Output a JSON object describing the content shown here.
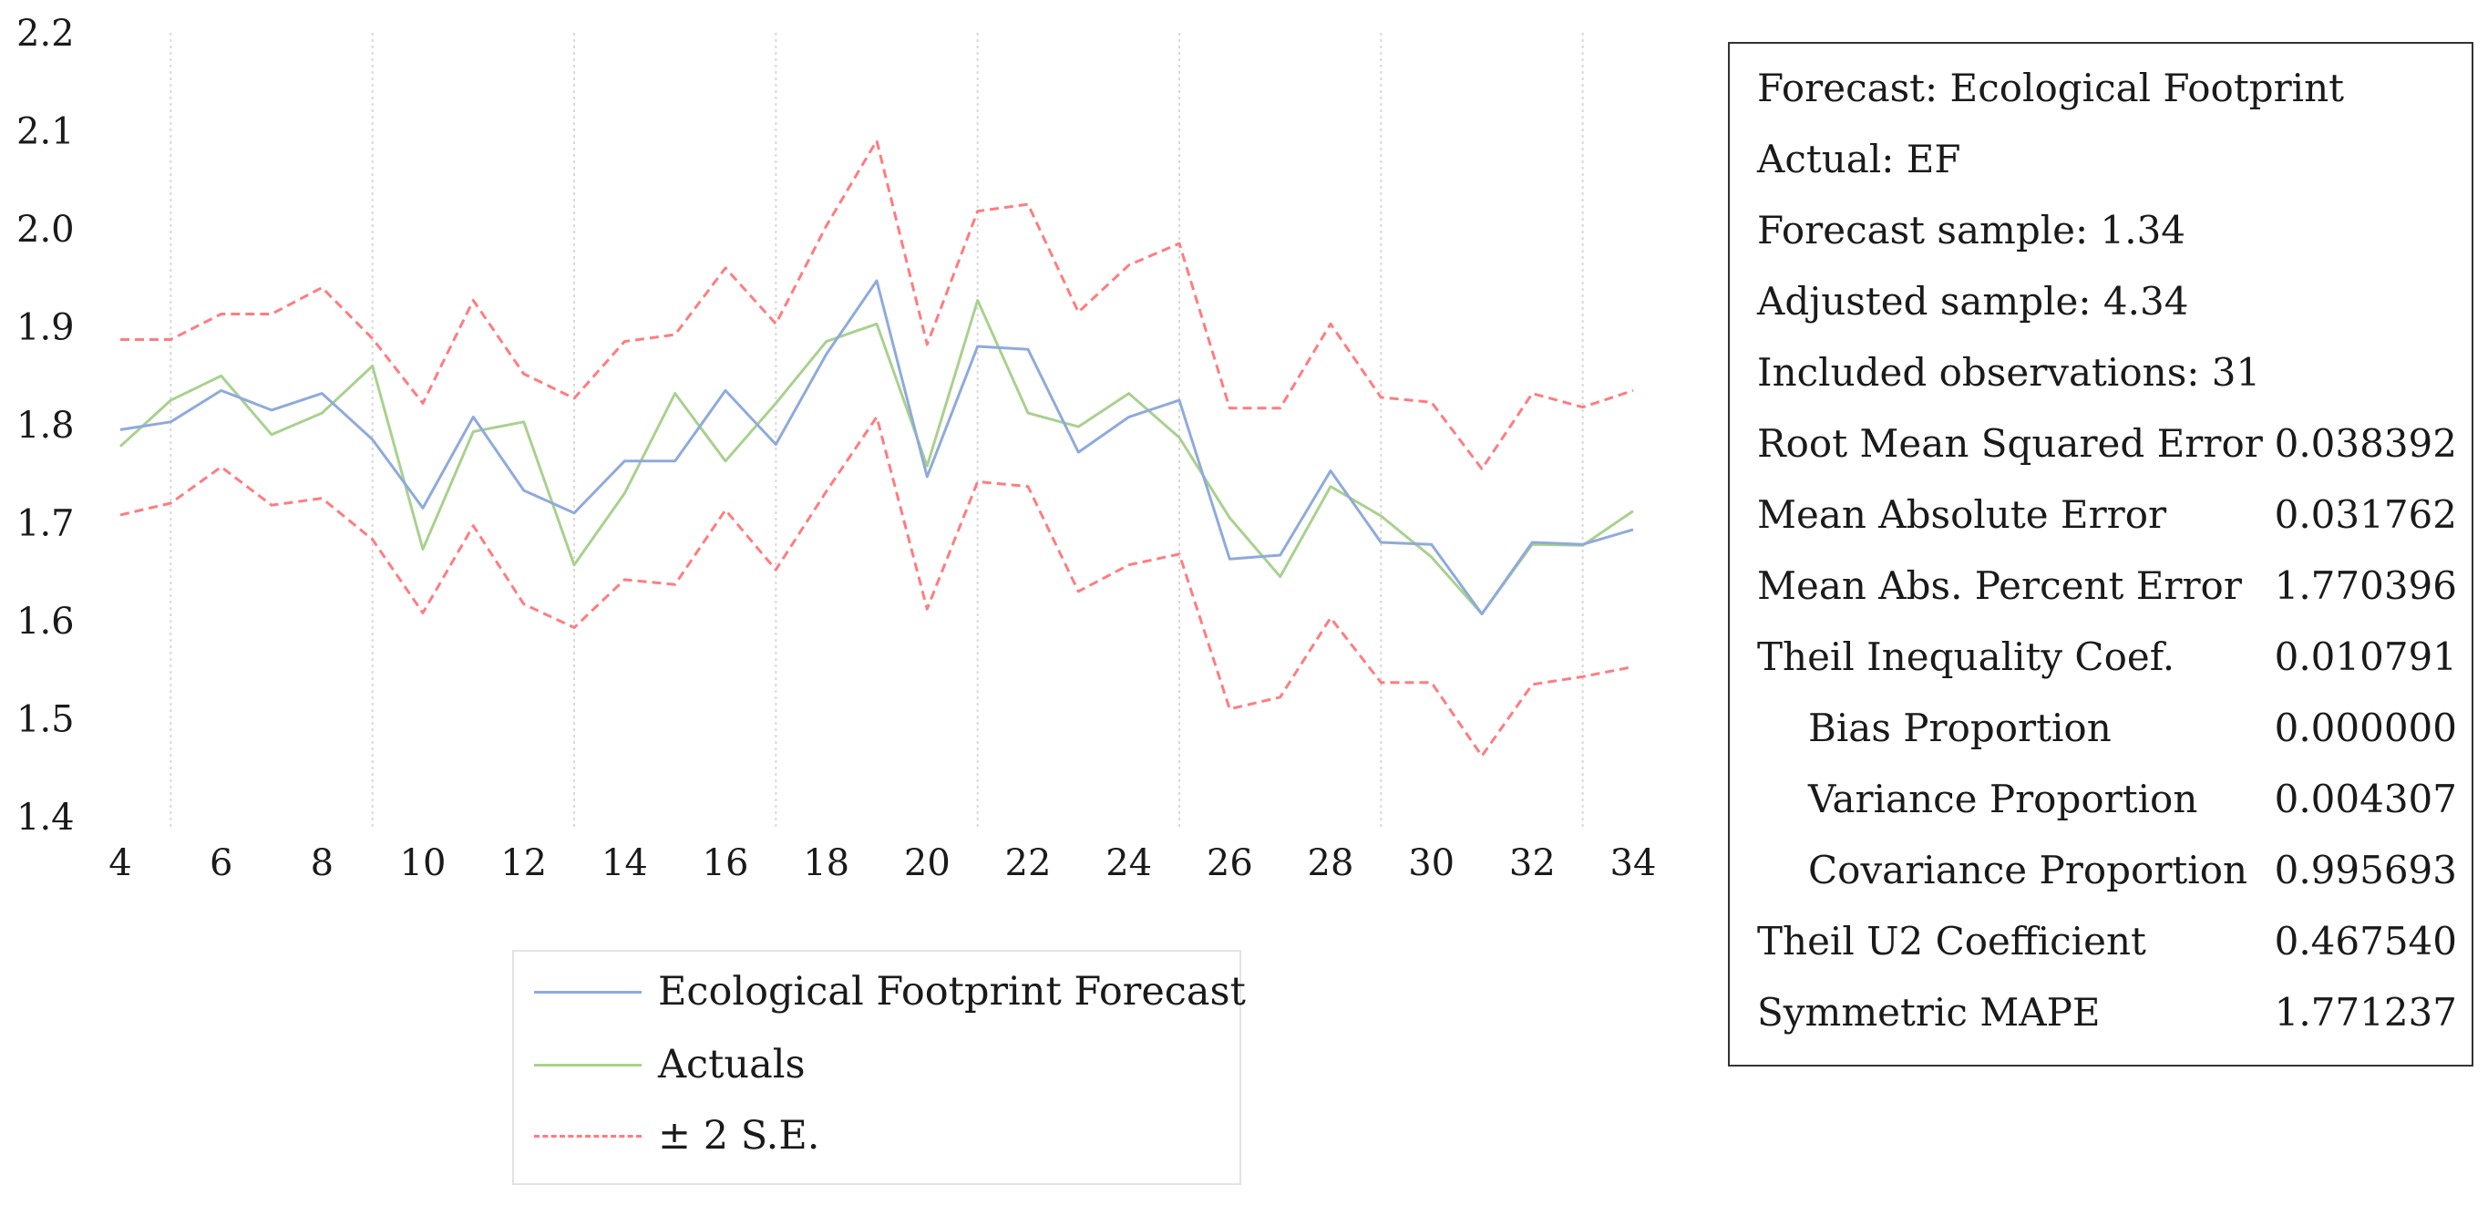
{
  "chart_data": {
    "type": "line",
    "x": [
      4,
      5,
      6,
      7,
      8,
      9,
      10,
      11,
      12,
      13,
      14,
      15,
      16,
      17,
      18,
      19,
      20,
      21,
      22,
      23,
      24,
      25,
      26,
      27,
      28,
      29,
      30,
      31,
      32,
      33,
      34
    ],
    "x_ticks": [
      "4",
      "6",
      "8",
      "10",
      "12",
      "14",
      "16",
      "18",
      "20",
      "22",
      "24",
      "26",
      "28",
      "30",
      "32",
      "34"
    ],
    "y_ticks": [
      "1.4",
      "1.5",
      "1.6",
      "1.7",
      "1.8",
      "1.9",
      "2.0",
      "2.1",
      "2.2"
    ],
    "ylim": [
      1.4,
      2.2
    ],
    "xlim": [
      4,
      34
    ],
    "series": [
      {
        "name": "Ecological Footprint Forecast",
        "color": "#8faadc",
        "values": [
          1.795,
          1.803,
          1.835,
          1.815,
          1.832,
          1.785,
          1.715,
          1.808,
          1.733,
          1.71,
          1.763,
          1.763,
          1.835,
          1.78,
          1.872,
          1.947,
          1.747,
          1.88,
          1.877,
          1.772,
          1.808,
          1.825,
          1.663,
          1.667,
          1.753,
          1.68,
          1.678,
          1.607,
          1.68,
          1.678,
          1.693
        ]
      },
      {
        "name": "Actuals",
        "color": "#a9d18e",
        "values": [
          1.778,
          1.825,
          1.85,
          1.79,
          1.812,
          1.86,
          1.673,
          1.793,
          1.803,
          1.657,
          1.73,
          1.832,
          1.763,
          1.822,
          1.885,
          1.903,
          1.758,
          1.927,
          1.812,
          1.798,
          1.832,
          1.787,
          1.705,
          1.645,
          1.737,
          1.707,
          1.665,
          1.607,
          1.678,
          1.677,
          1.712
        ]
      },
      {
        "name": "+2 S.E.",
        "color": "#ff7c80",
        "dashed": true,
        "values": [
          1.887,
          1.887,
          1.913,
          1.913,
          1.94,
          1.888,
          1.822,
          1.927,
          1.852,
          1.827,
          1.885,
          1.892,
          1.96,
          1.903,
          2.003,
          2.09,
          1.882,
          2.018,
          2.025,
          1.915,
          1.963,
          1.985,
          1.817,
          1.817,
          1.903,
          1.828,
          1.823,
          1.755,
          1.832,
          1.818,
          1.835
        ]
      },
      {
        "name": "-2 S.E.",
        "color": "#ff7c80",
        "dashed": true,
        "values": [
          1.708,
          1.72,
          1.757,
          1.718,
          1.725,
          1.683,
          1.608,
          1.697,
          1.617,
          1.593,
          1.642,
          1.637,
          1.713,
          1.652,
          1.732,
          1.808,
          1.612,
          1.742,
          1.737,
          1.63,
          1.657,
          1.668,
          1.51,
          1.522,
          1.603,
          1.537,
          1.537,
          1.462,
          1.535,
          1.543,
          1.553
        ]
      }
    ],
    "legend": [
      {
        "label": "Ecological Footprint Forecast",
        "color": "#8faadc",
        "dashed": false
      },
      {
        "label": "Actuals",
        "color": "#a9d18e",
        "dashed": false
      },
      {
        "label": "± 2 S.E.",
        "color": "#ff7c80",
        "dashed": true
      }
    ],
    "title": "",
    "xlabel": "",
    "ylabel": ""
  },
  "stats": {
    "forecast": "Forecast: Ecological Footprint",
    "actual": "Actual: EF",
    "forecast_sample": "Forecast sample: 1.34",
    "adjusted_sample": "Adjusted sample: 4.34",
    "included_obs": "Included observations: 31",
    "metrics": [
      {
        "label": "Root Mean Squared Error",
        "value": "0.038392",
        "indent": false
      },
      {
        "label": "Mean Absolute Error",
        "value": "0.031762",
        "indent": false
      },
      {
        "label": "Mean Abs. Percent Error",
        "value": "1.770396",
        "indent": false
      },
      {
        "label": "Theil Inequality Coef.",
        "value": "0.010791",
        "indent": false
      },
      {
        "label": "Bias Proportion",
        "value": "0.000000",
        "indent": true
      },
      {
        "label": "Variance Proportion",
        "value": "0.004307",
        "indent": true
      },
      {
        "label": "Covariance Proportion",
        "value": "0.995693",
        "indent": true
      },
      {
        "label": "Theil U2 Coefficient",
        "value": "0.467540",
        "indent": false
      },
      {
        "label": "Symmetric MAPE",
        "value": "1.771237",
        "indent": false
      }
    ]
  }
}
